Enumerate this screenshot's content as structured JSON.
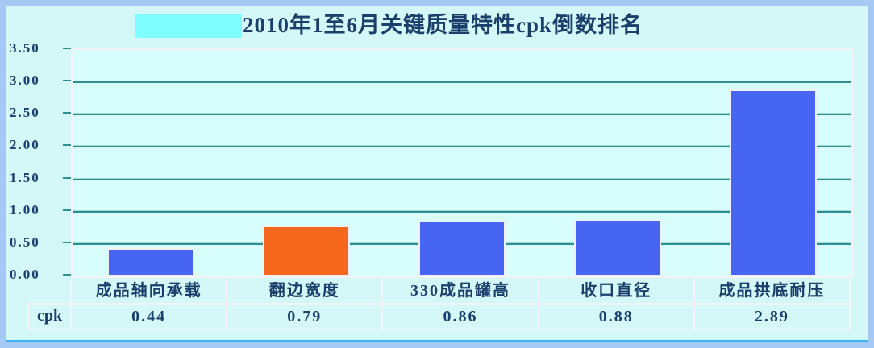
{
  "page": {
    "background": "#D4F8F8",
    "frame_color": "#A6C8F5",
    "accent_color": "#3AB5F4"
  },
  "title": {
    "text": "2010年1至6月关键质量特性cpk倒数排名",
    "color": "#1B3F6B",
    "highlight_box_color": "#7FFFFF"
  },
  "chart_data": {
    "type": "bar",
    "title": "2010年1至6月关键质量特性cpk倒数排名",
    "categories": [
      "成品轴向承载",
      "翻边宽度",
      "330成品罐高",
      "收口直径",
      "成品拱底耐压"
    ],
    "values": [
      0.44,
      0.79,
      0.86,
      0.88,
      2.89
    ],
    "bar_colors": [
      "#4565F2",
      "#F4671D",
      "#4565F2",
      "#4565F2",
      "#4565F2"
    ],
    "ylim": [
      0,
      3.5
    ],
    "yticks": [
      0,
      0.5,
      1,
      1.5,
      2,
      2.5,
      3,
      3.5
    ],
    "ytick_labels": [
      "0.00",
      "0.50",
      "1.00",
      "1.50",
      "2.00",
      "2.50",
      "3.00",
      "3.50"
    ],
    "grid": true,
    "gridline_color": "#2E8F8F",
    "legend": "none",
    "value_row": {
      "label": "cpk",
      "values": [
        "0.44",
        "0.79",
        "0.86",
        "0.88",
        "2.89"
      ]
    }
  }
}
